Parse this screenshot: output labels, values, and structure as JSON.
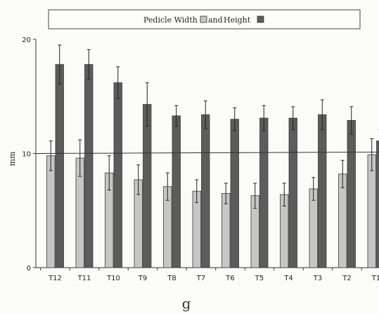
{
  "chart_data": {
    "type": "bar",
    "title": "Pedicle Width and Height",
    "legend_position": "top",
    "categories": [
      "T12",
      "T11",
      "T10",
      "T9",
      "T8",
      "T7",
      "T6",
      "T5",
      "T4",
      "T3",
      "T2",
      "T1"
    ],
    "series": [
      {
        "name": "Pedicle Width",
        "color": "#c6c6c6",
        "values": [
          9.8,
          9.6,
          8.3,
          7.7,
          7.1,
          6.7,
          6.5,
          6.3,
          6.4,
          6.9,
          8.2,
          9.9
        ],
        "errors": [
          1.3,
          1.6,
          1.5,
          1.3,
          1.2,
          1.0,
          0.9,
          1.1,
          1.0,
          1.0,
          1.2,
          1.4
        ]
      },
      {
        "name": "Height",
        "color": "#5c5c5c",
        "values": [
          17.8,
          17.8,
          16.2,
          14.3,
          13.3,
          13.4,
          13.0,
          13.1,
          13.1,
          13.4,
          12.9,
          11.1
        ],
        "errors": [
          1.7,
          1.3,
          1.4,
          1.9,
          0.9,
          1.2,
          1.0,
          1.1,
          1.0,
          1.3,
          1.2,
          1.0
        ]
      }
    ],
    "ylabel": "mm",
    "ylim": [
      0,
      20
    ],
    "yticks": [
      "0",
      "10",
      "20"
    ],
    "reference_line": 10,
    "grid": false,
    "caption": "g"
  }
}
